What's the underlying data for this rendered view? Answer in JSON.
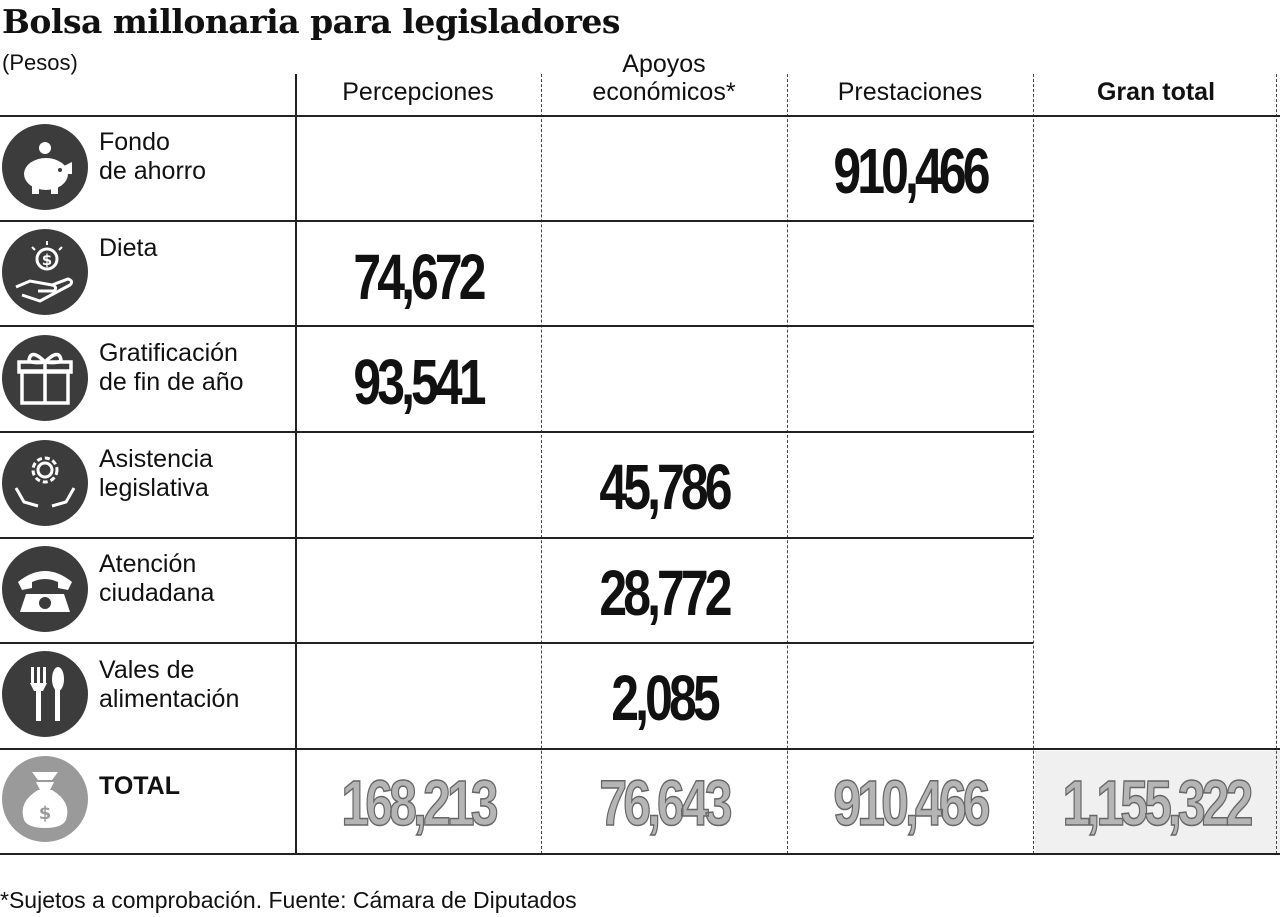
{
  "chart_data": {
    "type": "table",
    "title": "Bolsa millonaria para legisladores",
    "subtitle": "(Pesos)",
    "columns": [
      "Percepciones",
      "Apoyos económicos*",
      "Prestaciones",
      "Gran total"
    ],
    "rows": [
      {
        "label": "Fondo de ahorro",
        "icon": "piggy-bank-icon",
        "values": [
          "",
          "",
          "910,466",
          ""
        ]
      },
      {
        "label": "Dieta",
        "icon": "hand-coin-icon",
        "values": [
          "74,672",
          "",
          "",
          ""
        ]
      },
      {
        "label": "Gratificación de fin de año",
        "icon": "gift-icon",
        "values": [
          "93,541",
          "",
          "",
          ""
        ]
      },
      {
        "label": "Asistencia legislativa",
        "icon": "hands-gear-icon",
        "values": [
          "",
          "45,786",
          "",
          ""
        ]
      },
      {
        "label": "Atención ciudadana",
        "icon": "telephone-icon",
        "values": [
          "",
          "28,772",
          "",
          ""
        ]
      },
      {
        "label": "Vales de alimentación",
        "icon": "fork-spoon-icon",
        "values": [
          "",
          "2,085",
          "",
          ""
        ]
      }
    ],
    "total": {
      "label": "TOTAL",
      "icon": "money-bag-icon",
      "values": [
        "168,213",
        "76,643",
        "910,466",
        "1,155,322"
      ]
    },
    "footnote": "*Sujetos a comprobación. Fuente: Cámara de Diputados"
  },
  "header": {
    "col1": "Percepciones",
    "col2a": "Apoyos",
    "col2b": "económicos*",
    "col3": "Prestaciones",
    "col4": "Gran total"
  },
  "labels": {
    "r1a": "Fondo",
    "r1b": "de ahorro",
    "r2a": "Dieta",
    "r3a": "Gratificación",
    "r3b": "de fin de año",
    "r4a": "Asistencia",
    "r4b": "legislativa",
    "r5a": "Atención",
    "r5b": "ciudadana",
    "r6a": "Vales de",
    "r6b": "alimentación",
    "total": "TOTAL"
  }
}
